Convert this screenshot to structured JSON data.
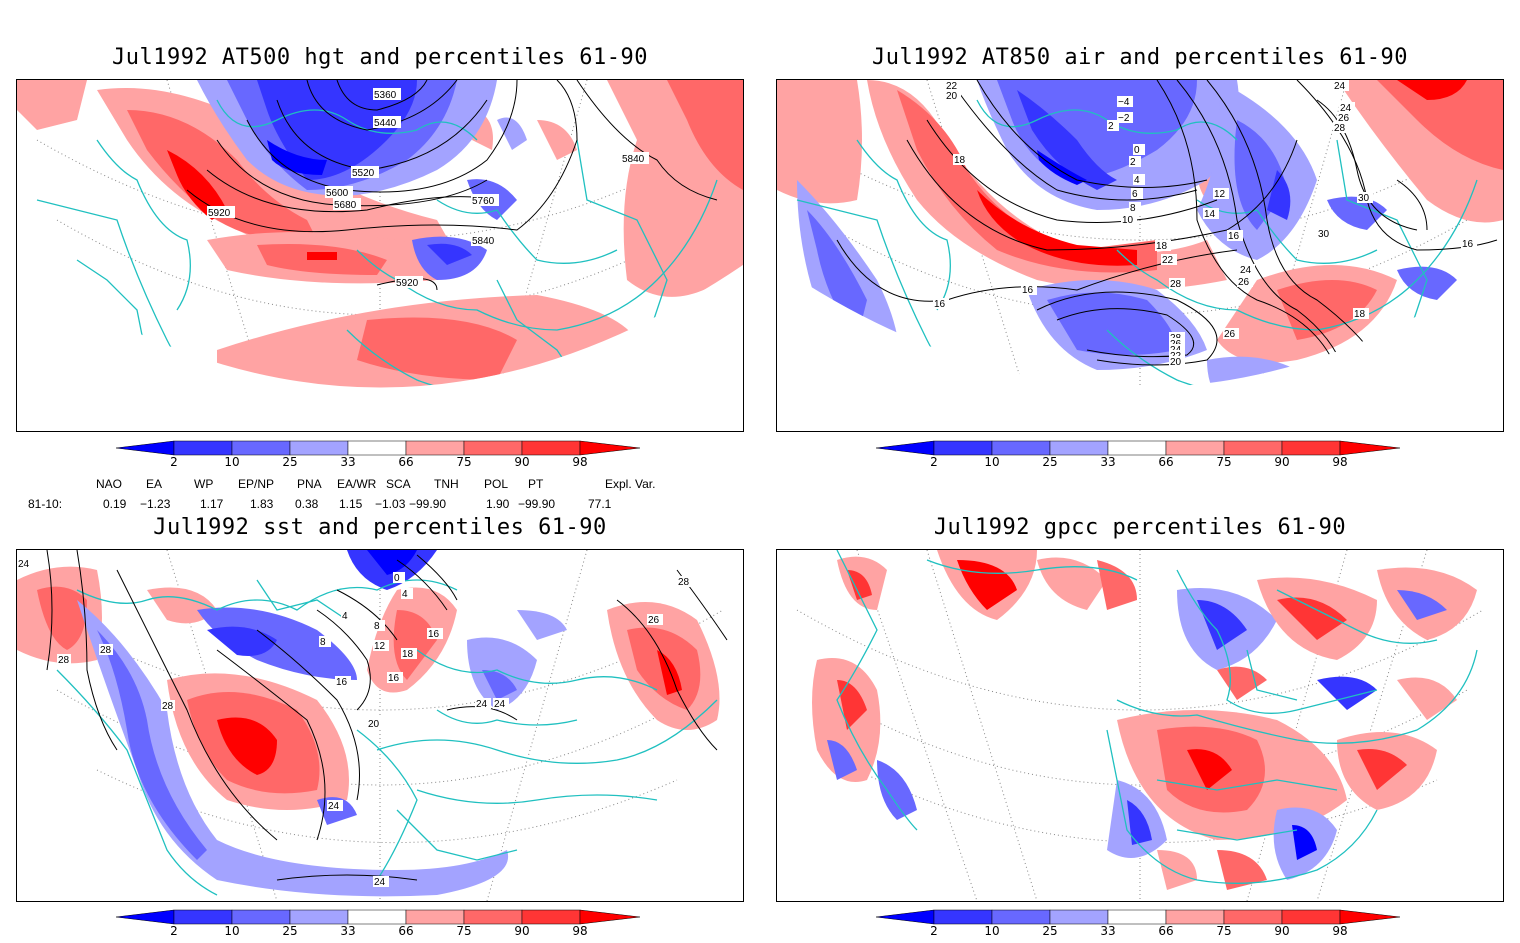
{
  "panels": {
    "hgt": {
      "title": "Jul1992 AT500 hgt and percentiles 61-90",
      "contour_labels": [
        "5360",
        "5440",
        "5520",
        "5600",
        "5680",
        "5760",
        "5840",
        "5840",
        "5920",
        "5920"
      ]
    },
    "air": {
      "title": "Jul1992 AT850 air and percentiles 61-90",
      "contour_labels": [
        "22",
        "20",
        "18",
        "16",
        "16",
        "−4",
        "−2",
        "2",
        "0",
        "2",
        "4",
        "6",
        "8",
        "10",
        "12",
        "14",
        "16",
        "18",
        "22",
        "24",
        "24",
        "26",
        "28",
        "30",
        "30",
        "26",
        "28",
        "24",
        "26",
        "28",
        "26",
        "24",
        "22",
        "20",
        "18",
        "16",
        "16",
        "16",
        "16"
      ]
    },
    "sst": {
      "title": "Jul1992 sst and percentiles 61-90",
      "contour_labels": [
        "24",
        "28",
        "28",
        "28",
        "0",
        "4",
        "8",
        "4",
        "8",
        "12",
        "16",
        "16",
        "16",
        "18",
        "20",
        "24",
        "24",
        "24",
        "28",
        "26",
        "24"
      ]
    },
    "gpcc": {
      "title": "Jul1992 gpcc percentiles 61-90"
    }
  },
  "colorbar": {
    "labels": [
      "2",
      "10",
      "25",
      "33",
      "66",
      "75",
      "90",
      "98"
    ],
    "colors": [
      "#0000ff",
      "#3535ff",
      "#6868ff",
      "#a3a3ff",
      "#ffffff",
      "#ffa3a3",
      "#ff6868",
      "#ff3535",
      "#ff0000"
    ]
  },
  "indices": {
    "headers": [
      "NAO",
      "EA",
      "WP",
      "EP/NP",
      "PNA",
      "EA/WR",
      "SCA",
      "TNH",
      "POL",
      "PT",
      "Expl. Var."
    ],
    "period": "81-10:",
    "values": [
      "0.19",
      "−1.23",
      "1.17",
      "1.83",
      "0.38",
      "1.15",
      "−1.03",
      "−99.90",
      "1.90",
      "−99.90",
      "77.1"
    ]
  }
}
